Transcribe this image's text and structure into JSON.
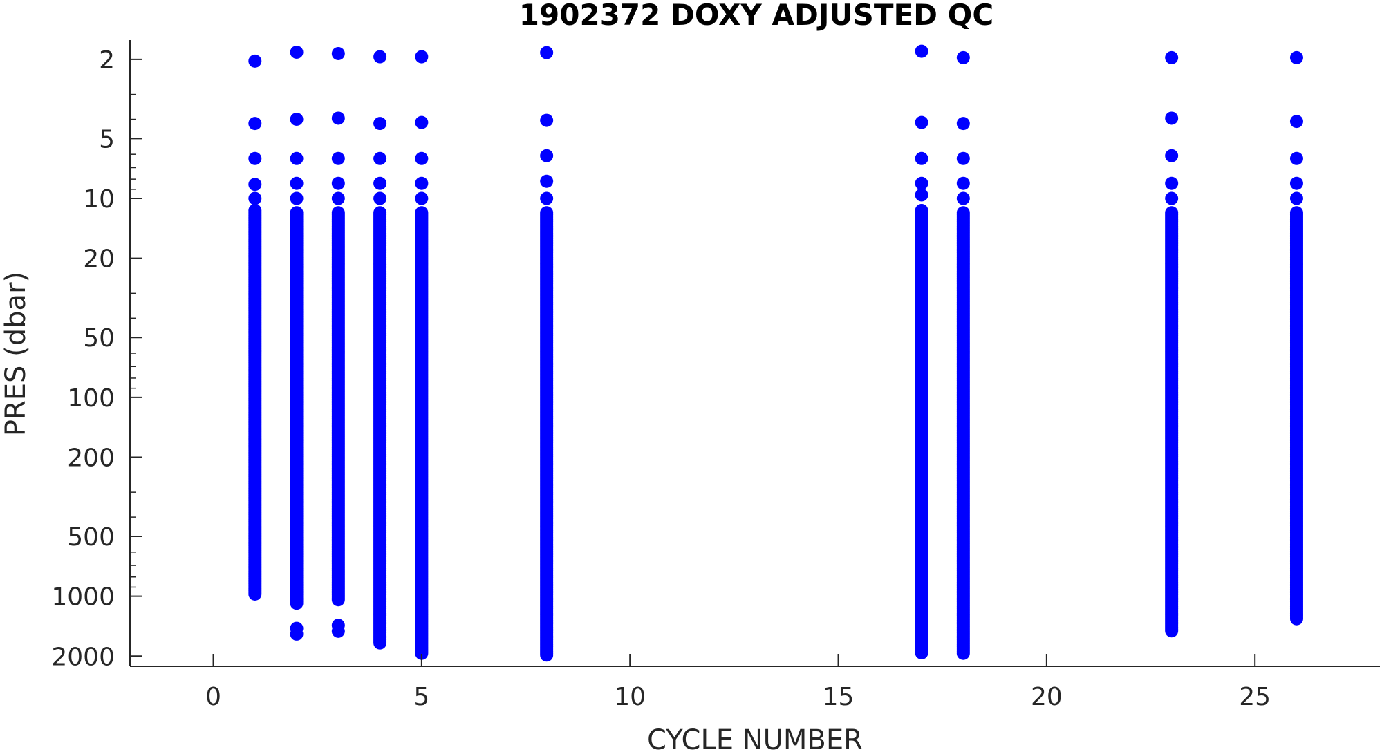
{
  "chart_data": {
    "type": "scatter",
    "title": "1902372  DOXY ADJUSTED QC",
    "xlabel": "CYCLE NUMBER",
    "ylabel": "PRES (dbar)",
    "xlim": [
      -2,
      28
    ],
    "xticks": [
      0,
      5,
      10,
      15,
      20,
      25
    ],
    "ylim": [
      1.6,
      2250
    ],
    "yscale": "log",
    "yaxis_reversed": true,
    "yticks": [
      2,
      5,
      10,
      20,
      50,
      100,
      200,
      500,
      1000,
      2000
    ],
    "grid": false,
    "marker_color": "#0000ff",
    "series": [
      {
        "values": [
          {
            "x": 1,
            "top": [
              2.04,
              4.2,
              6.3,
              8.5,
              10.0
            ],
            "dense_from": 11.5,
            "dense_to": 990,
            "bottom_extra": []
          },
          {
            "x": 2,
            "top": [
              1.84,
              4.0,
              6.3,
              8.4,
              10.0
            ],
            "dense_from": 11.8,
            "dense_to": 1100,
            "bottom_extra": [
              1450,
              1550
            ]
          },
          {
            "x": 3,
            "top": [
              1.87,
              3.95,
              6.3,
              8.4,
              10.0
            ],
            "dense_from": 11.8,
            "dense_to": 1050,
            "bottom_extra": [
              1400,
              1500
            ]
          },
          {
            "x": 4,
            "top": [
              1.94,
              4.2,
              6.3,
              8.4,
              10.0
            ],
            "dense_from": 11.8,
            "dense_to": 1750,
            "bottom_extra": []
          },
          {
            "x": 5,
            "top": [
              1.94,
              4.15,
              6.3,
              8.4,
              10.0
            ],
            "dense_from": 11.8,
            "dense_to": 1950,
            "bottom_extra": []
          },
          {
            "x": 8,
            "top": [
              1.85,
              4.05,
              6.1,
              8.2,
              10.0
            ],
            "dense_from": 11.8,
            "dense_to": 2000,
            "bottom_extra": []
          },
          {
            "x": 17,
            "top": [
              1.82,
              4.15,
              6.3,
              8.4,
              9.6
            ],
            "dense_from": 11.5,
            "dense_to": 1950,
            "bottom_extra": []
          },
          {
            "x": 18,
            "top": [
              1.96,
              4.2,
              6.3,
              8.4,
              10.0
            ],
            "dense_from": 11.8,
            "dense_to": 1950,
            "bottom_extra": []
          },
          {
            "x": 23,
            "top": [
              1.96,
              3.95,
              6.1,
              8.4,
              10.0
            ],
            "dense_from": 11.8,
            "dense_to": 1500,
            "bottom_extra": []
          },
          {
            "x": 26,
            "top": [
              1.96,
              4.1,
              6.3,
              8.4,
              10.0
            ],
            "dense_from": 11.8,
            "dense_to": 1300,
            "bottom_extra": []
          }
        ]
      }
    ]
  }
}
